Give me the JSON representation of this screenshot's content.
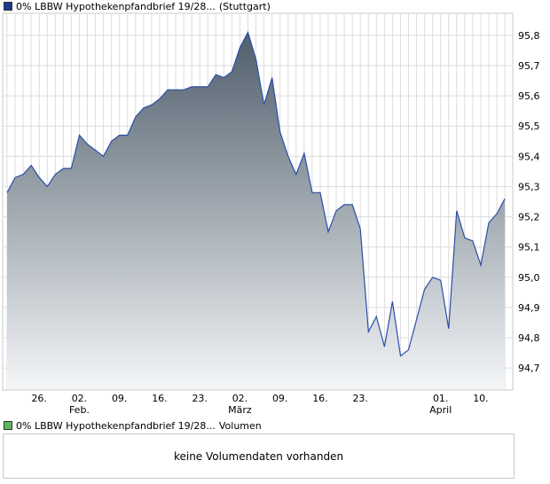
{
  "price_legend": {
    "name": "0% LBBW Hypothekenpfandbrief 19/28...",
    "exchange": "(Stuttgart)",
    "color": "#1a3a8c"
  },
  "volume_legend": {
    "name": "0% LBBW Hypothekenpfandbrief 19/28...",
    "label": "Volumen",
    "color": "#5cb85c"
  },
  "volume_message": "keine Volumendaten vorhanden",
  "chart_data": {
    "type": "area",
    "ylim": [
      94.63,
      95.87
    ],
    "y_ticks": [
      94.7,
      94.8,
      94.9,
      95.0,
      95.1,
      95.2,
      95.3,
      95.4,
      95.5,
      95.6,
      95.7,
      95.8
    ],
    "y_tick_labels": [
      "94,7",
      "94,8",
      "94,9",
      "95,0",
      "95,1",
      "95,2",
      "95,3",
      "95,4",
      "95,5",
      "95,6",
      "95,7",
      "95,8"
    ],
    "x_ticks": [
      {
        "day": 4,
        "label": "26.",
        "sub": ""
      },
      {
        "day": 9,
        "label": "02.",
        "sub": "Feb."
      },
      {
        "day": 14,
        "label": "09.",
        "sub": ""
      },
      {
        "day": 19,
        "label": "16.",
        "sub": ""
      },
      {
        "day": 24,
        "label": "23.",
        "sub": ""
      },
      {
        "day": 29,
        "label": "02.",
        "sub": "März"
      },
      {
        "day": 34,
        "label": "09.",
        "sub": ""
      },
      {
        "day": 39,
        "label": "16.",
        "sub": ""
      },
      {
        "day": 44,
        "label": "23.",
        "sub": ""
      },
      {
        "day": 49,
        "label": "",
        "sub": ""
      },
      {
        "day": 54,
        "label": "01.",
        "sub": "April"
      },
      {
        "day": 59,
        "label": "10.",
        "sub": ""
      }
    ],
    "x_range": [
      0,
      61
    ],
    "grid": true,
    "line_color": "#2a4fa8",
    "fill_top": "#4f5e6b",
    "fill_bottom": "#f4f6f8",
    "points": [
      [
        0,
        95.28
      ],
      [
        1,
        95.33
      ],
      [
        2,
        95.34
      ],
      [
        3,
        95.37
      ],
      [
        4,
        95.33
      ],
      [
        5,
        95.3
      ],
      [
        6,
        95.34
      ],
      [
        7,
        95.36
      ],
      [
        8,
        95.36
      ],
      [
        9,
        95.47
      ],
      [
        10,
        95.44
      ],
      [
        11,
        95.42
      ],
      [
        12,
        95.4
      ],
      [
        13,
        95.45
      ],
      [
        14,
        95.47
      ],
      [
        15,
        95.47
      ],
      [
        16,
        95.53
      ],
      [
        17,
        95.56
      ],
      [
        18,
        95.57
      ],
      [
        19,
        95.59
      ],
      [
        20,
        95.62
      ],
      [
        21,
        95.62
      ],
      [
        22,
        95.62
      ],
      [
        23,
        95.63
      ],
      [
        24,
        95.63
      ],
      [
        25,
        95.63
      ],
      [
        26,
        95.67
      ],
      [
        27,
        95.66
      ],
      [
        28,
        95.68
      ],
      [
        29,
        95.76
      ],
      [
        30,
        95.81
      ],
      [
        31,
        95.72
      ],
      [
        32,
        95.57
      ],
      [
        33,
        95.66
      ],
      [
        34,
        95.48
      ],
      [
        35,
        95.4
      ],
      [
        36,
        95.34
      ],
      [
        37,
        95.41
      ],
      [
        38,
        95.28
      ],
      [
        39,
        95.28
      ],
      [
        40,
        95.15
      ],
      [
        41,
        95.22
      ],
      [
        42,
        95.24
      ],
      [
        43,
        95.24
      ],
      [
        44,
        95.16
      ],
      [
        45,
        94.82
      ],
      [
        46,
        94.87
      ],
      [
        47,
        94.77
      ],
      [
        48,
        94.92
      ],
      [
        49,
        94.74
      ],
      [
        50,
        94.76
      ],
      [
        51,
        94.86
      ],
      [
        52,
        94.96
      ],
      [
        53,
        95.0
      ],
      [
        54,
        94.99
      ],
      [
        55,
        94.83
      ],
      [
        56,
        95.22
      ],
      [
        57,
        95.13
      ],
      [
        58,
        95.12
      ],
      [
        59,
        95.04
      ],
      [
        60,
        95.18
      ],
      [
        61,
        95.21
      ],
      [
        62,
        95.26
      ]
    ]
  }
}
